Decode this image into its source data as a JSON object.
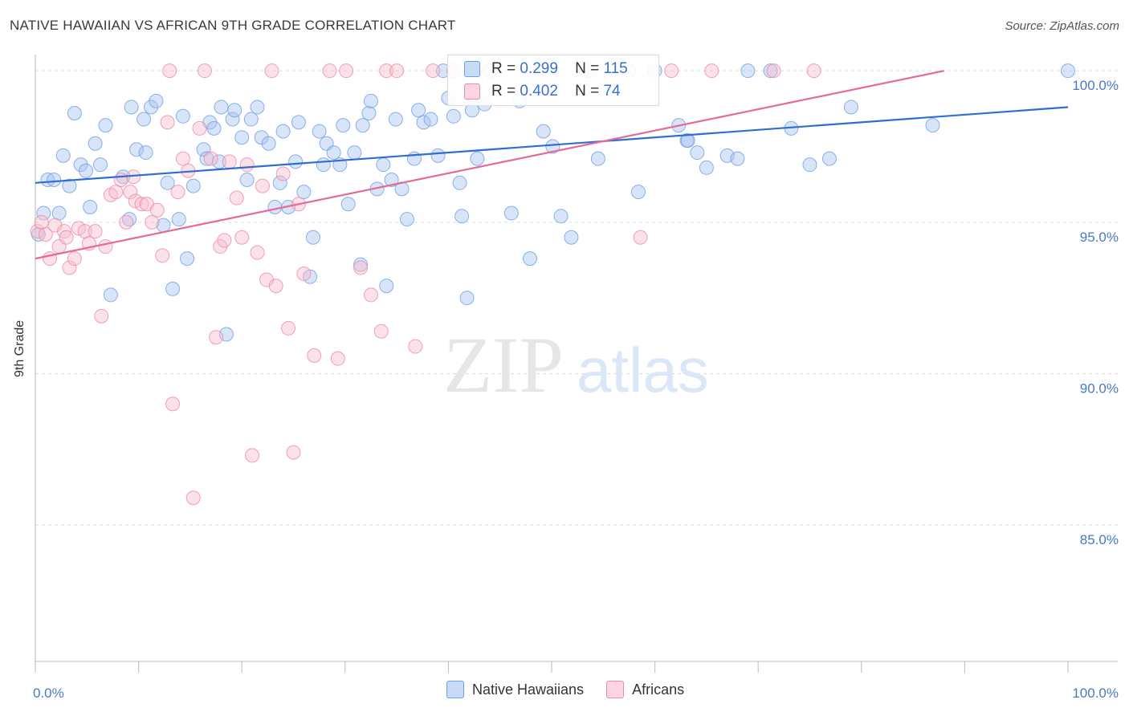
{
  "title": "NATIVE HAWAIIAN VS AFRICAN 9TH GRADE CORRELATION CHART",
  "source": "Source: ZipAtlas.com",
  "watermark": {
    "zip": "ZIP",
    "atlas": "atlas"
  },
  "stats": [
    {
      "r_label": "R =",
      "r": "0.299",
      "n_label": "N =",
      "n": "115",
      "color": "#6f9fe6"
    },
    {
      "r_label": "R =",
      "r": "0.402",
      "n_label": "N =",
      "n": "74",
      "color": "#f2a0b8"
    }
  ],
  "legend": [
    {
      "name": "Native Hawaiians",
      "color": "#a9c4ef"
    },
    {
      "name": "Africans",
      "color": "#f6bccd"
    }
  ],
  "chart_data": {
    "type": "scatter",
    "title": "NATIVE HAWAIIAN VS AFRICAN 9TH GRADE CORRELATION CHART",
    "xlabel": "",
    "ylabel": "9th Grade",
    "xlim": [
      0,
      100
    ],
    "ylim": [
      80.5,
      100.8
    ],
    "x_tick_labels": [
      "0.0%",
      "100.0%"
    ],
    "y_ticks": [
      85,
      90,
      95,
      100
    ],
    "y_tick_labels": [
      "85.0%",
      "90.0%",
      "95.0%",
      "100.0%"
    ],
    "grid": true,
    "legend_position": "bottom-center",
    "series": [
      {
        "name": "Native Hawaiians",
        "color": "#6f9fe6",
        "fill": "#a9c4ef",
        "trend": {
          "x": [
            0,
            100
          ],
          "y": [
            96.3,
            98.8
          ]
        },
        "points": [
          [
            0.8,
            95.3
          ],
          [
            1.2,
            96.4
          ],
          [
            1.8,
            96.4
          ],
          [
            2.3,
            95.3
          ],
          [
            2.7,
            97.2
          ],
          [
            3.3,
            96.2
          ],
          [
            3.8,
            98.6
          ],
          [
            4.4,
            96.9
          ],
          [
            4.9,
            96.7
          ],
          [
            5.3,
            95.5
          ],
          [
            5.8,
            97.6
          ],
          [
            6.3,
            96.9
          ],
          [
            6.8,
            98.2
          ],
          [
            7.3,
            92.6
          ],
          [
            8.5,
            96.5
          ],
          [
            9.1,
            95.1
          ],
          [
            9.3,
            98.8
          ],
          [
            9.8,
            97.4
          ],
          [
            10.5,
            98.4
          ],
          [
            10.7,
            97.3
          ],
          [
            11.2,
            98.8
          ],
          [
            11.7,
            99.0
          ],
          [
            12.4,
            94.9
          ],
          [
            12.8,
            96.3
          ],
          [
            13.3,
            92.8
          ],
          [
            13.9,
            95.1
          ],
          [
            14.3,
            98.5
          ],
          [
            14.7,
            93.8
          ],
          [
            15.3,
            96.2
          ],
          [
            16.3,
            97.4
          ],
          [
            16.6,
            97.1
          ],
          [
            16.9,
            98.3
          ],
          [
            17.3,
            98.1
          ],
          [
            17.8,
            97.0
          ],
          [
            18.5,
            91.3
          ],
          [
            19.1,
            98.4
          ],
          [
            19.3,
            98.7
          ],
          [
            20.0,
            97.8
          ],
          [
            20.5,
            96.4
          ],
          [
            20.9,
            98.4
          ],
          [
            21.5,
            98.8
          ],
          [
            21.9,
            97.8
          ],
          [
            22.6,
            97.6
          ],
          [
            23.2,
            95.5
          ],
          [
            23.7,
            96.3
          ],
          [
            24.0,
            98.0
          ],
          [
            24.5,
            95.5
          ],
          [
            25.2,
            97.0
          ],
          [
            25.5,
            98.3
          ],
          [
            26.0,
            96.0
          ],
          [
            26.6,
            93.2
          ],
          [
            26.9,
            94.5
          ],
          [
            27.5,
            98.0
          ],
          [
            27.9,
            96.9
          ],
          [
            28.2,
            97.6
          ],
          [
            28.9,
            97.3
          ],
          [
            29.5,
            96.9
          ],
          [
            29.8,
            98.2
          ],
          [
            30.3,
            95.6
          ],
          [
            30.9,
            97.3
          ],
          [
            31.5,
            93.6
          ],
          [
            31.7,
            98.2
          ],
          [
            32.3,
            98.6
          ],
          [
            32.5,
            99.0
          ],
          [
            33.1,
            96.1
          ],
          [
            33.7,
            96.9
          ],
          [
            34.0,
            92.9
          ],
          [
            34.5,
            96.4
          ],
          [
            34.9,
            98.4
          ],
          [
            35.5,
            96.1
          ],
          [
            36.0,
            95.1
          ],
          [
            36.7,
            97.1
          ],
          [
            37.1,
            98.7
          ],
          [
            37.6,
            98.3
          ],
          [
            38.3,
            98.4
          ],
          [
            39.0,
            97.2
          ],
          [
            39.5,
            100.0
          ],
          [
            40.0,
            99.1
          ],
          [
            40.5,
            98.5
          ],
          [
            41.1,
            96.3
          ],
          [
            41.3,
            95.2
          ],
          [
            41.8,
            92.5
          ],
          [
            42.3,
            98.7
          ],
          [
            42.8,
            97.1
          ],
          [
            43.5,
            98.9
          ],
          [
            44.0,
            100.0
          ],
          [
            46.1,
            95.3
          ],
          [
            46.9,
            99.0
          ],
          [
            47.9,
            93.8
          ],
          [
            49.2,
            98.0
          ],
          [
            50.1,
            97.5
          ],
          [
            50.9,
            95.2
          ],
          [
            51.9,
            94.5
          ],
          [
            53.8,
            100.0
          ],
          [
            54.5,
            97.1
          ],
          [
            57.5,
            100.0
          ],
          [
            58.4,
            96.0
          ],
          [
            60.0,
            100.0
          ],
          [
            62.3,
            98.2
          ],
          [
            63.1,
            97.7
          ],
          [
            63.2,
            97.7
          ],
          [
            64.1,
            97.3
          ],
          [
            65.0,
            96.8
          ],
          [
            67.0,
            97.2
          ],
          [
            68.0,
            97.1
          ],
          [
            69.0,
            100.0
          ],
          [
            71.2,
            100.0
          ],
          [
            73.2,
            98.1
          ],
          [
            75.0,
            96.9
          ],
          [
            76.9,
            97.1
          ],
          [
            79.0,
            98.8
          ],
          [
            86.9,
            98.2
          ],
          [
            100.0,
            100.0
          ],
          [
            0.3,
            94.6
          ],
          [
            18.0,
            98.8
          ]
        ]
      },
      {
        "name": "Africans",
        "color": "#ef8aa8",
        "fill": "#f6bccd",
        "trend": {
          "x": [
            0,
            88
          ],
          "y": [
            93.8,
            100.0
          ]
        },
        "points": [
          [
            0.2,
            94.7
          ],
          [
            0.6,
            95.0
          ],
          [
            1.0,
            94.6
          ],
          [
            1.4,
            93.8
          ],
          [
            1.9,
            94.9
          ],
          [
            2.3,
            94.2
          ],
          [
            2.8,
            94.7
          ],
          [
            3.3,
            93.5
          ],
          [
            3.8,
            93.8
          ],
          [
            4.2,
            94.8
          ],
          [
            4.8,
            94.7
          ],
          [
            5.2,
            94.3
          ],
          [
            5.8,
            94.7
          ],
          [
            6.4,
            91.9
          ],
          [
            6.8,
            94.2
          ],
          [
            7.3,
            95.9
          ],
          [
            7.8,
            96.0
          ],
          [
            8.3,
            96.4
          ],
          [
            8.8,
            95.0
          ],
          [
            9.2,
            96.0
          ],
          [
            9.7,
            95.7
          ],
          [
            10.3,
            95.6
          ],
          [
            10.8,
            95.6
          ],
          [
            11.3,
            95.0
          ],
          [
            11.8,
            95.4
          ],
          [
            12.3,
            93.9
          ],
          [
            12.8,
            98.3
          ],
          [
            13.3,
            89.0
          ],
          [
            13.8,
            96.0
          ],
          [
            14.3,
            97.1
          ],
          [
            14.8,
            96.7
          ],
          [
            15.3,
            85.9
          ],
          [
            15.9,
            98.1
          ],
          [
            16.4,
            100.0
          ],
          [
            17.0,
            97.1
          ],
          [
            17.5,
            91.2
          ],
          [
            17.9,
            94.2
          ],
          [
            18.3,
            94.4
          ],
          [
            18.8,
            97.0
          ],
          [
            19.5,
            95.8
          ],
          [
            20.0,
            94.5
          ],
          [
            20.5,
            96.9
          ],
          [
            21.0,
            87.3
          ],
          [
            21.5,
            94.0
          ],
          [
            22.0,
            96.2
          ],
          [
            22.4,
            93.1
          ],
          [
            22.9,
            100.0
          ],
          [
            23.3,
            92.9
          ],
          [
            24.0,
            96.6
          ],
          [
            24.5,
            91.5
          ],
          [
            25.0,
            87.4
          ],
          [
            25.5,
            95.6
          ],
          [
            26.0,
            93.3
          ],
          [
            27.0,
            90.6
          ],
          [
            28.5,
            100.0
          ],
          [
            29.3,
            90.5
          ],
          [
            30.1,
            100.0
          ],
          [
            31.5,
            93.5
          ],
          [
            32.5,
            92.6
          ],
          [
            33.5,
            91.4
          ],
          [
            34.0,
            100.0
          ],
          [
            35.0,
            100.0
          ],
          [
            36.8,
            90.9
          ],
          [
            38.5,
            100.0
          ],
          [
            40.5,
            100.0
          ],
          [
            53.4,
            100.0
          ],
          [
            58.6,
            94.5
          ],
          [
            61.6,
            100.0
          ],
          [
            65.5,
            100.0
          ],
          [
            71.5,
            100.0
          ],
          [
            75.4,
            100.0
          ],
          [
            3.0,
            94.5
          ],
          [
            9.5,
            96.5
          ],
          [
            13.0,
            100.0
          ]
        ]
      }
    ]
  }
}
